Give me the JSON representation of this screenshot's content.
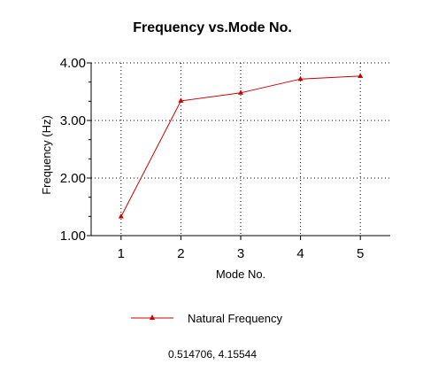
{
  "chart_data": {
    "type": "line",
    "title": "Frequency vs.Mode No.",
    "xlabel": "Mode No.",
    "ylabel": "Frequency (Hz)",
    "categories": [
      "1",
      "2",
      "3",
      "4",
      "5"
    ],
    "x": [
      1,
      2,
      3,
      4,
      5
    ],
    "series": [
      {
        "name": "Natural Frequency",
        "values": [
          1.33,
          3.34,
          3.48,
          3.72,
          3.77
        ],
        "color": "#cc0000",
        "marker": "triangle"
      }
    ],
    "xlim": [
      0.5,
      5.5
    ],
    "ylim": [
      1.0,
      4.0
    ],
    "yticks": [
      "1.00",
      "2.00",
      "3.00",
      "4.00"
    ],
    "grid": true,
    "grid_style": "dotted",
    "legend_position": "bottom-center"
  },
  "readout": {
    "text": "0.514706, 4.15544"
  },
  "colors": {
    "background": "#ffffff",
    "axis": "#000000",
    "grid": "#000000",
    "series": "#cc0000"
  }
}
